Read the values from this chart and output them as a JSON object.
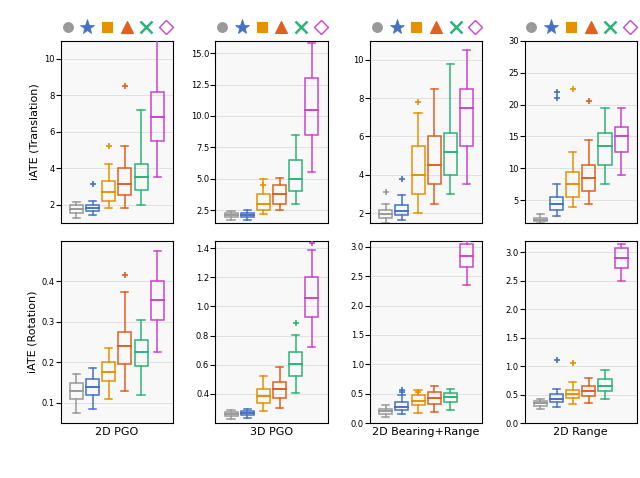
{
  "legend_colors": [
    "#999999",
    "#4472c4",
    "#e69100",
    "#e06020",
    "#2db37a",
    "#cc44cc"
  ],
  "legend_markers": [
    "o",
    "*",
    "s",
    "^",
    "x",
    "D"
  ],
  "legend_marker_sizes": [
    7,
    11,
    7,
    8,
    9,
    7
  ],
  "col_labels": [
    "2D PGO",
    "3D PGO",
    "2D Bearing+Range",
    "2D Range"
  ],
  "row_labels": [
    "iATE (Translation)",
    "iATE (Rotation)"
  ],
  "box_colors": [
    "#999999",
    "#4472c4",
    "#e69100",
    "#e06020",
    "#2db37a",
    "#cc44cc"
  ],
  "data": {
    "trans_2d_pgo": [
      {
        "med": 1.75,
        "q1": 1.55,
        "q3": 1.95,
        "whislo": 1.25,
        "whishi": 2.15,
        "fliers": []
      },
      {
        "med": 1.8,
        "q1": 1.65,
        "q3": 2.0,
        "whislo": 1.4,
        "whishi": 2.2,
        "fliers": [
          3.1
        ]
      },
      {
        "med": 2.7,
        "q1": 2.2,
        "q3": 3.3,
        "whislo": 1.8,
        "whishi": 4.2,
        "fliers": [
          5.2
        ]
      },
      {
        "med": 3.1,
        "q1": 2.5,
        "q3": 4.0,
        "whislo": 1.8,
        "whishi": 5.2,
        "fliers": [
          8.5
        ]
      },
      {
        "med": 3.5,
        "q1": 2.8,
        "q3": 4.2,
        "whislo": 2.0,
        "whishi": 7.2,
        "fliers": []
      },
      {
        "med": 6.8,
        "q1": 5.5,
        "q3": 8.2,
        "whislo": 3.5,
        "whishi": 11.2,
        "fliers": []
      }
    ],
    "trans_3d_pgo": [
      {
        "med": 2.1,
        "q1": 1.95,
        "q3": 2.25,
        "whislo": 1.75,
        "whishi": 2.45,
        "fliers": []
      },
      {
        "med": 2.15,
        "q1": 1.95,
        "q3": 2.3,
        "whislo": 1.75,
        "whishi": 2.5,
        "fliers": []
      },
      {
        "med": 3.0,
        "q1": 2.5,
        "q3": 3.8,
        "whislo": 2.2,
        "whishi": 5.0,
        "fliers": [
          4.5
        ]
      },
      {
        "med": 3.8,
        "q1": 3.0,
        "q3": 4.5,
        "whislo": 2.5,
        "whishi": 5.1,
        "fliers": []
      },
      {
        "med": 5.0,
        "q1": 4.0,
        "q3": 6.5,
        "whislo": 3.0,
        "whishi": 8.5,
        "fliers": []
      },
      {
        "med": 10.5,
        "q1": 8.5,
        "q3": 13.0,
        "whislo": 5.5,
        "whishi": 15.8,
        "fliers": []
      }
    ],
    "trans_2d_br": [
      {
        "med": 1.95,
        "q1": 1.75,
        "q3": 2.15,
        "whislo": 1.5,
        "whishi": 2.5,
        "fliers": [
          3.1
        ]
      },
      {
        "med": 2.1,
        "q1": 1.9,
        "q3": 2.4,
        "whislo": 1.65,
        "whishi": 2.95,
        "fliers": [
          3.8
        ]
      },
      {
        "med": 4.0,
        "q1": 3.0,
        "q3": 5.5,
        "whislo": 2.0,
        "whishi": 7.2,
        "fliers": [
          7.8
        ]
      },
      {
        "med": 4.5,
        "q1": 3.5,
        "q3": 6.0,
        "whislo": 2.5,
        "whishi": 8.5,
        "fliers": []
      },
      {
        "med": 5.2,
        "q1": 4.0,
        "q3": 6.2,
        "whislo": 3.0,
        "whishi": 9.8,
        "fliers": []
      },
      {
        "med": 7.5,
        "q1": 5.5,
        "q3": 8.5,
        "whislo": 3.5,
        "whishi": 10.5,
        "fliers": []
      }
    ],
    "trans_2d_range": [
      {
        "med": 2.0,
        "q1": 1.8,
        "q3": 2.3,
        "whislo": 1.5,
        "whishi": 2.8,
        "fliers": []
      },
      {
        "med": 4.5,
        "q1": 3.5,
        "q3": 5.5,
        "whislo": 2.5,
        "whishi": 7.5,
        "fliers": [
          22.0,
          21.0
        ]
      },
      {
        "med": 7.5,
        "q1": 5.5,
        "q3": 9.5,
        "whislo": 4.0,
        "whishi": 12.5,
        "fliers": [
          22.5
        ]
      },
      {
        "med": 8.5,
        "q1": 6.5,
        "q3": 10.5,
        "whislo": 4.5,
        "whishi": 14.5,
        "fliers": [
          20.5
        ]
      },
      {
        "med": 13.5,
        "q1": 10.5,
        "q3": 15.5,
        "whislo": 7.5,
        "whishi": 19.5,
        "fliers": []
      },
      {
        "med": 15.0,
        "q1": 12.5,
        "q3": 16.5,
        "whislo": 9.0,
        "whishi": 19.5,
        "fliers": []
      }
    ],
    "rot_2d_pgo": [
      {
        "med": 0.13,
        "q1": 0.11,
        "q3": 0.15,
        "whislo": 0.075,
        "whishi": 0.17,
        "fliers": []
      },
      {
        "med": 0.14,
        "q1": 0.12,
        "q3": 0.16,
        "whislo": 0.085,
        "whishi": 0.185,
        "fliers": []
      },
      {
        "med": 0.175,
        "q1": 0.155,
        "q3": 0.2,
        "whislo": 0.11,
        "whishi": 0.235,
        "fliers": []
      },
      {
        "med": 0.24,
        "q1": 0.195,
        "q3": 0.275,
        "whislo": 0.13,
        "whishi": 0.375,
        "fliers": [
          0.415
        ]
      },
      {
        "med": 0.225,
        "q1": 0.19,
        "q3": 0.255,
        "whislo": 0.12,
        "whishi": 0.305,
        "fliers": []
      },
      {
        "med": 0.355,
        "q1": 0.305,
        "q3": 0.4,
        "whislo": 0.225,
        "whishi": 0.475,
        "fliers": []
      }
    ],
    "rot_3d_pgo": [
      {
        "med": 0.265,
        "q1": 0.25,
        "q3": 0.278,
        "whislo": 0.228,
        "whishi": 0.292,
        "fliers": []
      },
      {
        "med": 0.268,
        "q1": 0.252,
        "q3": 0.282,
        "whislo": 0.232,
        "whishi": 0.298,
        "fliers": []
      },
      {
        "med": 0.385,
        "q1": 0.335,
        "q3": 0.435,
        "whislo": 0.28,
        "whishi": 0.525,
        "fliers": []
      },
      {
        "med": 0.435,
        "q1": 0.375,
        "q3": 0.485,
        "whislo": 0.305,
        "whishi": 0.585,
        "fliers": []
      },
      {
        "med": 0.605,
        "q1": 0.525,
        "q3": 0.685,
        "whislo": 0.405,
        "whishi": 0.805,
        "fliers": [
          0.885
        ]
      },
      {
        "med": 1.055,
        "q1": 0.925,
        "q3": 1.205,
        "whislo": 0.725,
        "whishi": 1.385,
        "fliers": [
          1.435
        ]
      }
    ],
    "rot_2d_br": [
      {
        "med": 0.2,
        "q1": 0.16,
        "q3": 0.24,
        "whislo": 0.1,
        "whishi": 0.3,
        "fliers": []
      },
      {
        "med": 0.28,
        "q1": 0.23,
        "q3": 0.35,
        "whislo": 0.155,
        "whishi": 0.475,
        "fliers": [
          0.52,
          0.555
        ]
      },
      {
        "med": 0.38,
        "q1": 0.3,
        "q3": 0.47,
        "whislo": 0.175,
        "whishi": 0.57,
        "fliers": [
          0.52
        ]
      },
      {
        "med": 0.42,
        "q1": 0.33,
        "q3": 0.52,
        "whislo": 0.195,
        "whishi": 0.625,
        "fliers": []
      },
      {
        "med": 0.445,
        "q1": 0.365,
        "q3": 0.515,
        "whislo": 0.215,
        "whishi": 0.585,
        "fliers": []
      },
      {
        "med": 2.85,
        "q1": 2.65,
        "q3": 3.05,
        "whislo": 2.35,
        "whishi": 3.1,
        "fliers": []
      }
    ],
    "rot_2d_range": [
      {
        "med": 0.355,
        "q1": 0.305,
        "q3": 0.385,
        "whislo": 0.255,
        "whishi": 0.425,
        "fliers": []
      },
      {
        "med": 0.425,
        "q1": 0.365,
        "q3": 0.505,
        "whislo": 0.285,
        "whishi": 0.605,
        "fliers": [
          1.1
        ]
      },
      {
        "med": 0.505,
        "q1": 0.435,
        "q3": 0.585,
        "whislo": 0.335,
        "whishi": 0.725,
        "fliers": [
          1.05
        ]
      },
      {
        "med": 0.555,
        "q1": 0.475,
        "q3": 0.645,
        "whislo": 0.355,
        "whishi": 0.785,
        "fliers": []
      },
      {
        "med": 0.655,
        "q1": 0.555,
        "q3": 0.765,
        "whislo": 0.415,
        "whishi": 0.925,
        "fliers": []
      },
      {
        "med": 2.9,
        "q1": 2.72,
        "q3": 3.08,
        "whislo": 2.5,
        "whishi": 3.15,
        "fliers": []
      }
    ]
  },
  "ylims": {
    "trans_2d_pgo": [
      1.0,
      11.0
    ],
    "trans_3d_pgo": [
      1.5,
      16.0
    ],
    "trans_2d_br": [
      1.5,
      11.0
    ],
    "trans_2d_range": [
      1.5,
      30.0
    ],
    "rot_2d_pgo": [
      0.05,
      0.5
    ],
    "rot_3d_pgo": [
      0.2,
      1.45
    ],
    "rot_2d_br": [
      0.0,
      3.1
    ],
    "rot_2d_range": [
      0.0,
      3.2
    ]
  },
  "yticks": {
    "trans_2d_pgo": [
      2,
      4,
      6,
      8,
      10
    ],
    "trans_3d_pgo": [
      2.5,
      5.0,
      7.5,
      10.0,
      12.5,
      15.0
    ],
    "trans_2d_br": [
      2,
      4,
      6,
      8,
      10
    ],
    "trans_2d_range": [
      5,
      10,
      15,
      20,
      25,
      30
    ],
    "rot_2d_pgo": [
      0.1,
      0.2,
      0.3,
      0.4
    ],
    "rot_3d_pgo": [
      0.4,
      0.6,
      0.8,
      1.0,
      1.2,
      1.4
    ],
    "rot_2d_br": [
      0.0,
      0.5,
      1.0,
      1.5,
      2.0,
      2.5,
      3.0
    ],
    "rot_2d_range": [
      0.0,
      0.5,
      1.0,
      1.5,
      2.0,
      2.5,
      3.0
    ]
  }
}
